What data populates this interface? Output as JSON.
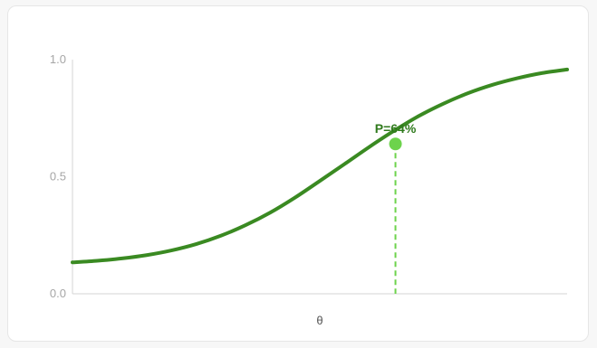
{
  "chart_data": {
    "type": "line",
    "title": "",
    "xlabel": "θ",
    "ylabel": "",
    "ylim": [
      0,
      1
    ],
    "yticks": [
      {
        "value": 0,
        "label": "0.0"
      },
      {
        "value": 0.5,
        "label": "0.5"
      },
      {
        "value": 1,
        "label": "1.0"
      }
    ],
    "curve": {
      "color": "#3a8a22",
      "x": [
        0.0,
        0.05,
        0.1,
        0.15,
        0.2,
        0.25,
        0.3,
        0.35,
        0.4,
        0.45,
        0.5,
        0.55,
        0.6,
        0.65,
        0.7,
        0.75,
        0.8,
        0.85,
        0.9,
        0.95,
        1.0
      ],
      "y": [
        0.134,
        0.141,
        0.151,
        0.165,
        0.185,
        0.212,
        0.248,
        0.293,
        0.347,
        0.411,
        0.482,
        0.554,
        0.627,
        0.696,
        0.759,
        0.812,
        0.857,
        0.893,
        0.921,
        0.943,
        0.958
      ]
    },
    "marker": {
      "x": 0.653,
      "y": 0.64,
      "label": "P=64%",
      "color": "#6dd34c",
      "label_color": "#2f7a1c"
    }
  }
}
